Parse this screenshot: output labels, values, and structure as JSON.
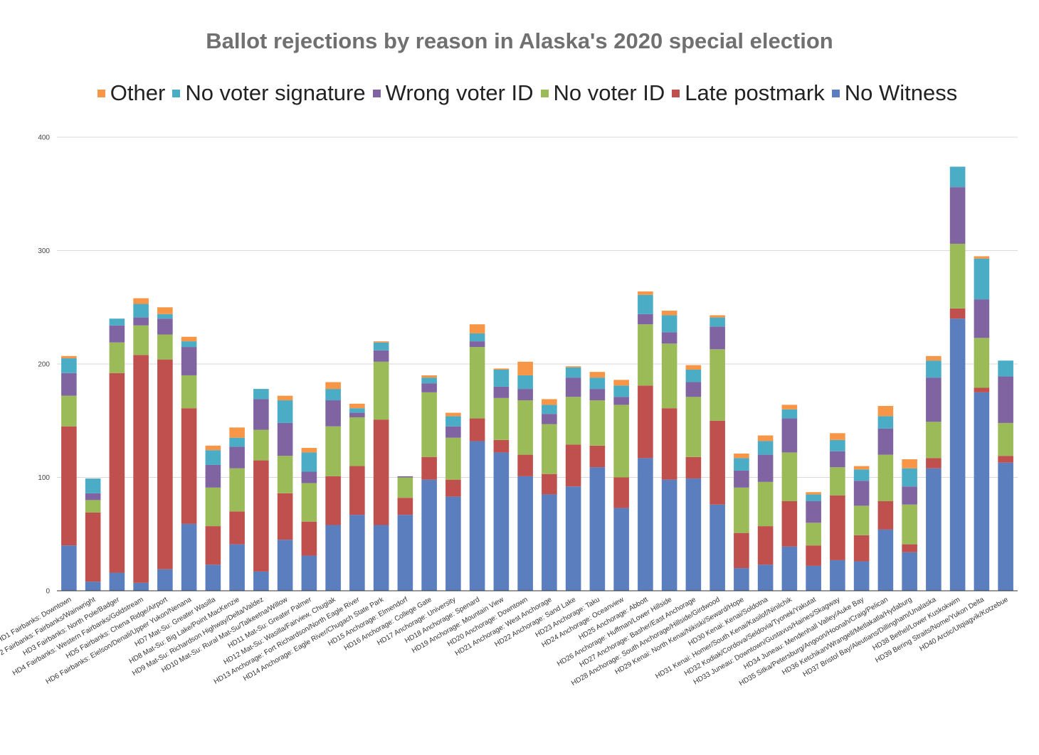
{
  "chart_data": {
    "type": "bar",
    "stacked": true,
    "title": "Ballot rejections by reason in Alaska's 2020 special election",
    "xlabel": "",
    "ylabel": "",
    "ylim": [
      0,
      400
    ],
    "yticks": [
      "0",
      "100",
      "200",
      "300",
      "400"
    ],
    "legend_position": "top",
    "grid": true,
    "legend_order": [
      "Other",
      "No voter signature",
      "Wrong voter ID",
      "No voter ID",
      "Late postmark",
      "No Witness"
    ],
    "colors": {
      "No Witness": "#5b7fbe",
      "Late postmark": "#c0504d",
      "No voter ID": "#9bbb59",
      "Wrong voter ID": "#8064a2",
      "No voter signature": "#4bacc6",
      "Other": "#f79646"
    },
    "categories": [
      "HD1 Fairbanks: Downtown",
      "HD2 Fairbanks: Fairbanks/Wainwright",
      "HD3 Fairbanks: North Pole/Badger",
      "HD4 Fairbanks: Western Fairbanks/Goldstream",
      "HD5 Fairbanks: Chena Ridge/Airport",
      "HD6 Fairbanks: Eielson/Denali/Upper Yukon/Nenana",
      "HD7 Mat-Su: Greater Wasilla",
      "HD8 Mat-Su: Big Lake/Point MacKenzie",
      "HD9 Mat-Su: Richardson Highway/Delta/Valdez",
      "HD10 Mat-Su: Rural Mat-Su/Talkeetna/Willow",
      "HD11 Mat-Su: Greater Palmer",
      "HD12 Mat-Su: Wasilla/Fairview, Chugiak",
      "HD13 Anchorage: Fort Richardson/North Eagle River",
      "HD14 Anchorage: Eagle River/Chugach State Park",
      "HD15 Anchorage: Elmendorf",
      "HD16 Anchorage: College Gate",
      "HD17 Anchorage: University",
      "HD18 Anchorage: Spenard",
      "HD19 Anchorage: Mountain View",
      "HD20 Anchorage: Downtown",
      "HD21 Anchorage: West Anchorage",
      "HD22 Anchorage: Sand Lake",
      "HD23 Anchorage: Taku",
      "HD24 Anchorage: Oceanview",
      "HD25 Anchorage: Abbott",
      "HD26 Anchorage: Huffman/Lower Hillside",
      "HD27 Anchorage: Basher/East Anchorage",
      "HD28 Anchorage: South Anchorage/Hillside/Girdwood",
      "HD29 Kenai: North Kenai/Nikiski/Seward/Hope",
      "HD30 Kenai: Kenai/Soldotna",
      "HD31 Kenai: Homer/South Kenai/Kasilof/Ninilchik",
      "HD32 Kodiak/Cordova/Seldovia/Tyonek/Yakutat",
      "HD33 Juneau: Downtown/Gustavus/Haines/Skagway",
      "HD34 Juneau: Mendenhall Valley/Auke Bay",
      "HD35 Sitka/Petersburg/Angoon/Hoonah/Craig/Pelican",
      "HD36 Ketchikan/Wrangell/Metlakatla/Hydaburg",
      "HD37 Bristol Bay/Aleutians/Dillingham/Unalaska",
      "HD38 Bethel/Lower Kuskokwim",
      "HD39 Bering Straits/Nome/Yukon Delta",
      "HD40 Arctic/Utqiagvik/Kotzebue"
    ],
    "series": [
      {
        "name": "No Witness",
        "values": [
          40,
          8,
          16,
          7,
          19,
          59,
          23,
          41,
          17,
          45,
          31,
          58,
          67,
          58,
          67,
          98,
          83,
          132,
          122,
          101,
          85,
          92,
          109,
          73,
          117,
          98,
          99,
          76,
          20,
          23,
          39,
          22,
          27,
          26,
          54,
          34,
          108,
          240,
          175,
          113
        ]
      },
      {
        "name": "Late postmark",
        "values": [
          105,
          61,
          176,
          201,
          185,
          102,
          34,
          29,
          98,
          41,
          30,
          43,
          43,
          93,
          15,
          20,
          15,
          20,
          11,
          19,
          18,
          37,
          19,
          27,
          64,
          63,
          19,
          74,
          31,
          34,
          40,
          18,
          57,
          23,
          25,
          7,
          9,
          9,
          4,
          6
        ]
      },
      {
        "name": "No voter ID",
        "values": [
          27,
          11,
          27,
          26,
          22,
          29,
          34,
          38,
          27,
          33,
          34,
          44,
          43,
          51,
          18,
          57,
          37,
          63,
          37,
          48,
          44,
          42,
          40,
          64,
          54,
          57,
          53,
          63,
          40,
          39,
          43,
          20,
          25,
          26,
          41,
          35,
          32,
          57,
          44,
          29
        ]
      },
      {
        "name": "Wrong voter ID",
        "values": [
          20,
          6,
          15,
          7,
          14,
          25,
          20,
          19,
          27,
          29,
          10,
          23,
          4,
          10,
          1,
          8,
          10,
          5,
          10,
          10,
          9,
          17,
          10,
          7,
          9,
          10,
          13,
          20,
          15,
          24,
          30,
          19,
          14,
          22,
          23,
          16,
          39,
          50,
          34,
          41
        ]
      },
      {
        "name": "No voter signature",
        "values": [
          13,
          13,
          6,
          12,
          4,
          5,
          13,
          8,
          9,
          20,
          17,
          10,
          4,
          7,
          0,
          5,
          9,
          7,
          15,
          12,
          8,
          9,
          10,
          10,
          17,
          15,
          11,
          8,
          11,
          12,
          8,
          6,
          10,
          10,
          11,
          16,
          15,
          18,
          36,
          14
        ]
      },
      {
        "name": "Other",
        "values": [
          2,
          0,
          0,
          5,
          6,
          4,
          4,
          9,
          0,
          4,
          4,
          6,
          4,
          1,
          0,
          2,
          3,
          8,
          1,
          12,
          5,
          1,
          5,
          5,
          3,
          4,
          4,
          2,
          4,
          5,
          4,
          2,
          6,
          3,
          9,
          8,
          4,
          0,
          2,
          0
        ]
      }
    ]
  }
}
